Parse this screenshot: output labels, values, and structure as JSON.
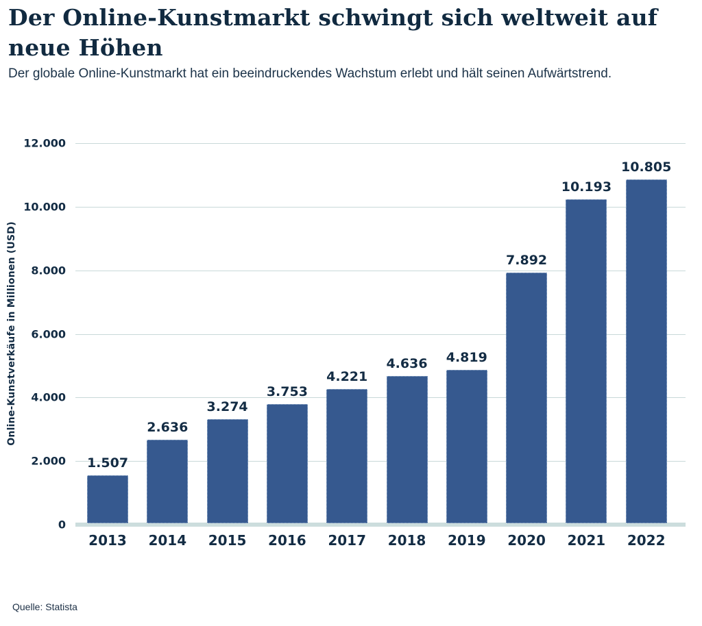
{
  "page": {
    "title": "Der Online-Kunstmarkt schwingt sich weltweit auf neue Höhen",
    "subtitle": "Der globale Online-Kunstmarkt hat ein beeindruckendes Wachstum erlebt und hält seinen Aufwärtstrend.",
    "source": "Quelle: Statista"
  },
  "chart_data": {
    "type": "bar",
    "title": "Der Online-Kunstmarkt schwingt sich weltweit auf neue Höhen",
    "subtitle": "Der globale Online-Kunstmarkt hat ein beeindruckendes Wachstum erlebt und hält seinen Aufwärtstrend.",
    "categories": [
      "2013",
      "2014",
      "2015",
      "2016",
      "2017",
      "2018",
      "2019",
      "2020",
      "2021",
      "2022"
    ],
    "values": [
      1507,
      2636,
      3274,
      3753,
      4221,
      4636,
      4819,
      7892,
      10193,
      10805
    ],
    "value_labels": [
      "1.507",
      "2.636",
      "3.274",
      "3.753",
      "4.221",
      "4.636",
      "4.819",
      "7.892",
      "10.193",
      "10.805"
    ],
    "xlabel": "",
    "ylabel": "Online-Kunstverkäufe in Millionen (USD)",
    "ylim": [
      0,
      12000
    ],
    "yticks": [
      0,
      2000,
      4000,
      6000,
      8000,
      10000,
      12000
    ],
    "ytick_labels": [
      "0",
      "2.000",
      "4.000",
      "6.000",
      "8.000",
      "10.000",
      "12.000"
    ],
    "grid": true,
    "legend_position": "none",
    "source": "Quelle: Statista",
    "colors": {
      "bar": "#36598f",
      "bar_border": "#aabfd8",
      "grid": "#c8d8d8",
      "axis_line": "#ccdddd",
      "text": "#132c44",
      "background": "#ffffff"
    }
  }
}
